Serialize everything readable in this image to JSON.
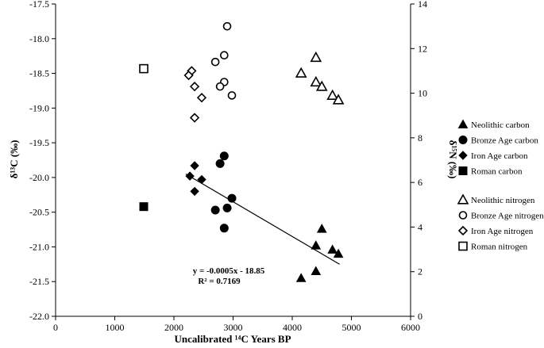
{
  "chart_data": {
    "type": "scatter",
    "xlabel": "Uncalibrated ¹⁴C Years BP",
    "ylabel": "δ¹³C (‰)",
    "y2label": "δ¹⁵N (‰)",
    "xlim": [
      0,
      6000
    ],
    "ylim": [
      -22.0,
      -17.5
    ],
    "y2lim": [
      0,
      14
    ],
    "x_ticks": [
      "0",
      "1000",
      "2000",
      "3000",
      "4000",
      "5000",
      "6000"
    ],
    "y_ticks": [
      "-17.5",
      "-18.0",
      "-18.5",
      "-19.0",
      "-19.5",
      "-20.0",
      "-20.5",
      "-21.0",
      "-21.5",
      "-22.0"
    ],
    "y2_ticks": [
      "14",
      "12",
      "10",
      "8",
      "6",
      "4",
      "2",
      "0"
    ],
    "grid": false,
    "legend_position": "right",
    "series": [
      {
        "name": "Neolithic carbon",
        "axis": "left",
        "marker": "triangle-filled",
        "points": [
          [
            4150,
            -21.45
          ],
          [
            4400,
            -21.35
          ],
          [
            4400,
            -20.98
          ],
          [
            4500,
            -20.74
          ],
          [
            4680,
            -21.04
          ],
          [
            4780,
            -21.1
          ]
        ]
      },
      {
        "name": "Bronze Age carbon",
        "axis": "left",
        "marker": "circle-filled",
        "points": [
          [
            2850,
            -19.69
          ],
          [
            2780,
            -19.8
          ],
          [
            2980,
            -20.3
          ],
          [
            2700,
            -20.47
          ],
          [
            2900,
            -20.44
          ],
          [
            2850,
            -20.73
          ]
        ]
      },
      {
        "name": "Iron Age carbon",
        "axis": "left",
        "marker": "diamond-filled",
        "points": [
          [
            2350,
            -19.83
          ],
          [
            2270,
            -19.98
          ],
          [
            2470,
            -20.03
          ],
          [
            2350,
            -20.2
          ]
        ]
      },
      {
        "name": "Roman carbon",
        "axis": "left",
        "marker": "square-filled",
        "points": [
          [
            1490,
            -20.42
          ]
        ]
      },
      {
        "name": "Neolithic nitrogen",
        "axis": "right",
        "marker": "triangle-open",
        "points": [
          [
            4400,
            11.6
          ],
          [
            4150,
            10.9
          ],
          [
            4400,
            10.5
          ],
          [
            4500,
            10.3
          ],
          [
            4680,
            9.9
          ],
          [
            4780,
            9.7
          ]
        ]
      },
      {
        "name": "Bronze Age nitrogen",
        "axis": "right",
        "marker": "circle-open",
        "points": [
          [
            2900,
            13.0
          ],
          [
            2850,
            11.7
          ],
          [
            2700,
            11.4
          ],
          [
            2850,
            10.5
          ],
          [
            2780,
            10.3
          ],
          [
            2980,
            9.9
          ]
        ]
      },
      {
        "name": "Iron Age nitrogen",
        "axis": "right",
        "marker": "diamond-open",
        "points": [
          [
            2300,
            11.0
          ],
          [
            2250,
            10.8
          ],
          [
            2350,
            10.3
          ],
          [
            2470,
            9.8
          ],
          [
            2350,
            8.9
          ]
        ]
      },
      {
        "name": "Roman nitrogen",
        "axis": "right",
        "marker": "square-open",
        "points": [
          [
            1490,
            11.1
          ]
        ]
      }
    ],
    "trendline": {
      "x": [
        2200,
        4800
      ],
      "y": [
        -19.95,
        -21.25
      ],
      "equation": "y = -0.0005x - 18.85",
      "r2": "R² = 0.7169"
    }
  }
}
